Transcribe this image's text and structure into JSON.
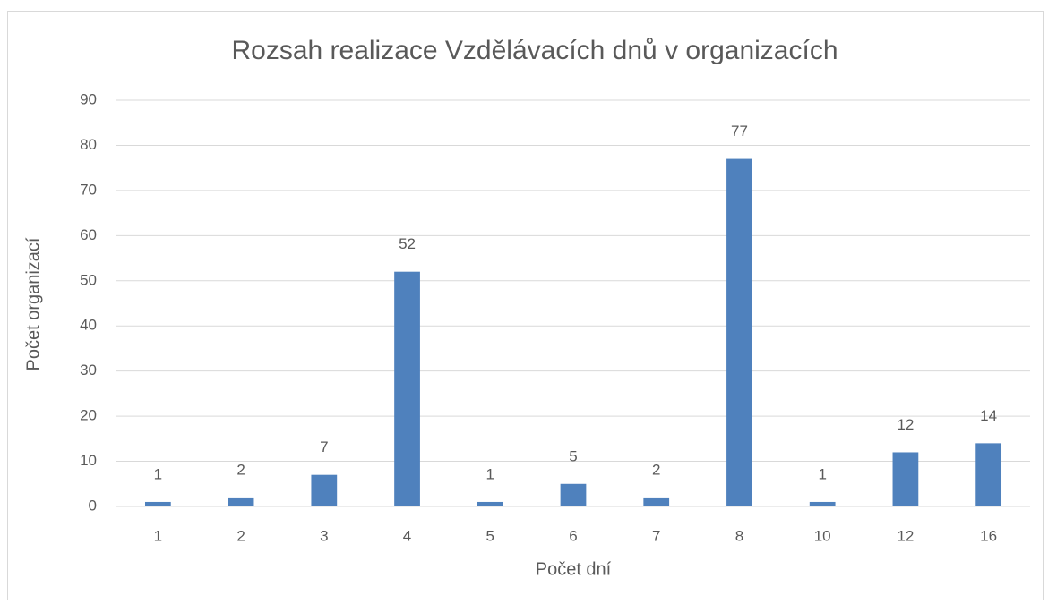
{
  "chart_data": {
    "type": "bar",
    "title": "Rozsah realizace Vzdělávacích dnů v organizacích",
    "x_label": "Počet dní",
    "y_label": "Počet organizací",
    "categories": [
      "1",
      "2",
      "3",
      "4",
      "5",
      "6",
      "7",
      "8",
      "10",
      "12",
      "16"
    ],
    "values": [
      1,
      2,
      7,
      52,
      1,
      5,
      2,
      77,
      1,
      12,
      14
    ],
    "color": "#4f81bd",
    "ylim": [
      0,
      90
    ],
    "yticks": [
      0,
      10,
      20,
      30,
      40,
      50,
      60,
      70,
      80,
      90
    ],
    "grid": true,
    "data_labels": true
  }
}
